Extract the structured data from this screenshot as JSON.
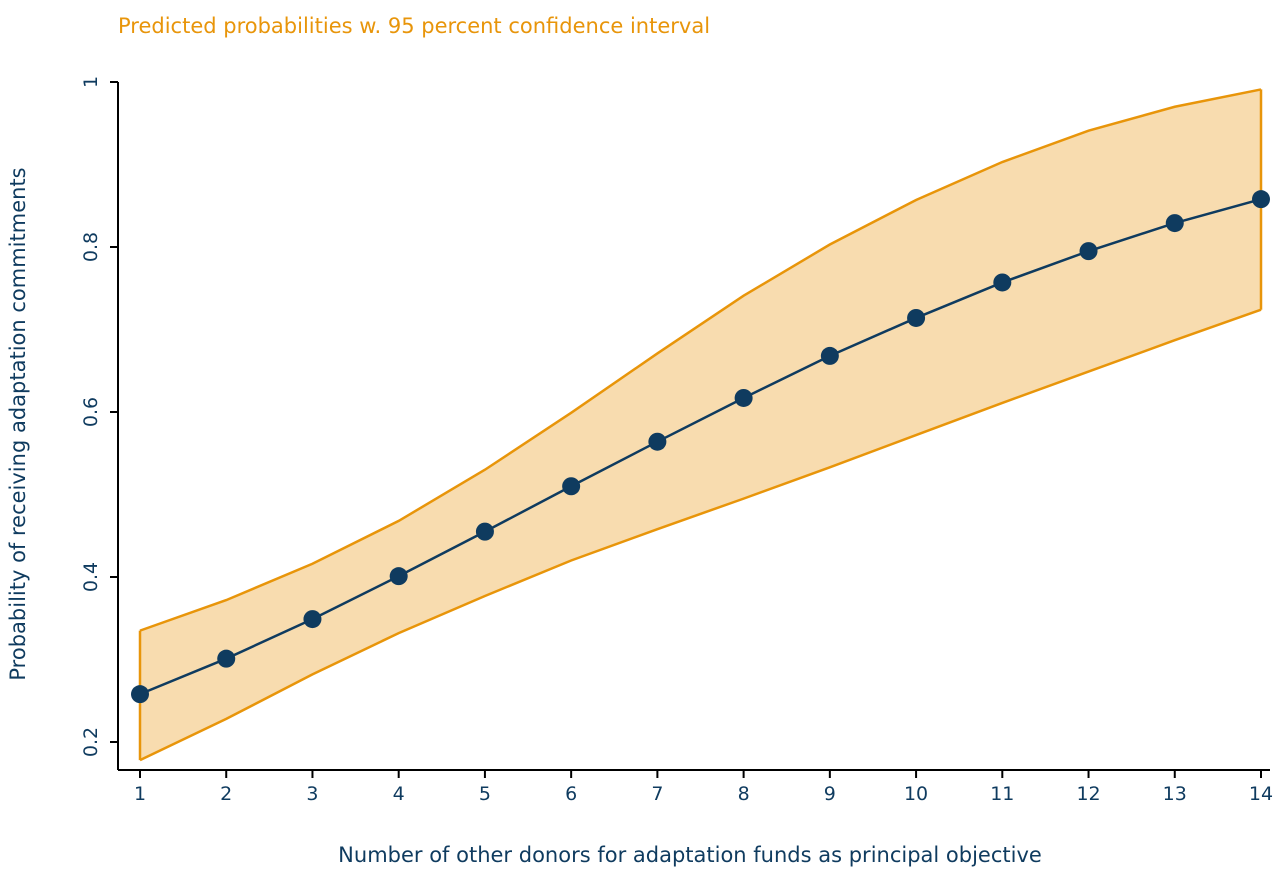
{
  "chart_data": {
    "type": "line",
    "title": "Predicted probabilities w. 95 percent confidence interval",
    "xlabel": "Number of other donors for adaptation funds as principal objective",
    "ylabel": "Probability of receiving adaptation commitments",
    "x": [
      1,
      2,
      3,
      4,
      5,
      6,
      7,
      8,
      9,
      10,
      11,
      12,
      13,
      14
    ],
    "xticks": [
      "1",
      "2",
      "3",
      "4",
      "5",
      "6",
      "7",
      "8",
      "9",
      "10",
      "11",
      "12",
      "13",
      "14"
    ],
    "yticks": [
      "0.2",
      "0.4",
      "0.6",
      "0.8",
      "1"
    ],
    "xlim": [
      1,
      14
    ],
    "ylim": [
      0.2,
      1
    ],
    "grid": false,
    "series": [
      {
        "values": [
          0.258,
          0.301,
          0.349,
          0.401,
          0.455,
          0.51,
          0.564,
          0.617,
          0.668,
          0.714,
          0.757,
          0.795,
          0.829,
          0.858
        ],
        "color": "#0f3b5f"
      }
    ],
    "ci_upper": [
      0.335,
      0.372,
      0.416,
      0.468,
      0.53,
      0.599,
      0.671,
      0.741,
      0.803,
      0.857,
      0.903,
      0.941,
      0.97,
      0.991
    ],
    "ci_lower": [
      0.178,
      0.228,
      0.282,
      0.332,
      0.377,
      0.42,
      0.458,
      0.495,
      0.533,
      0.572,
      0.611,
      0.649,
      0.687,
      0.724
    ],
    "ci_fill_color": "#f8dcaf",
    "ci_line_color": "#e8950a"
  }
}
